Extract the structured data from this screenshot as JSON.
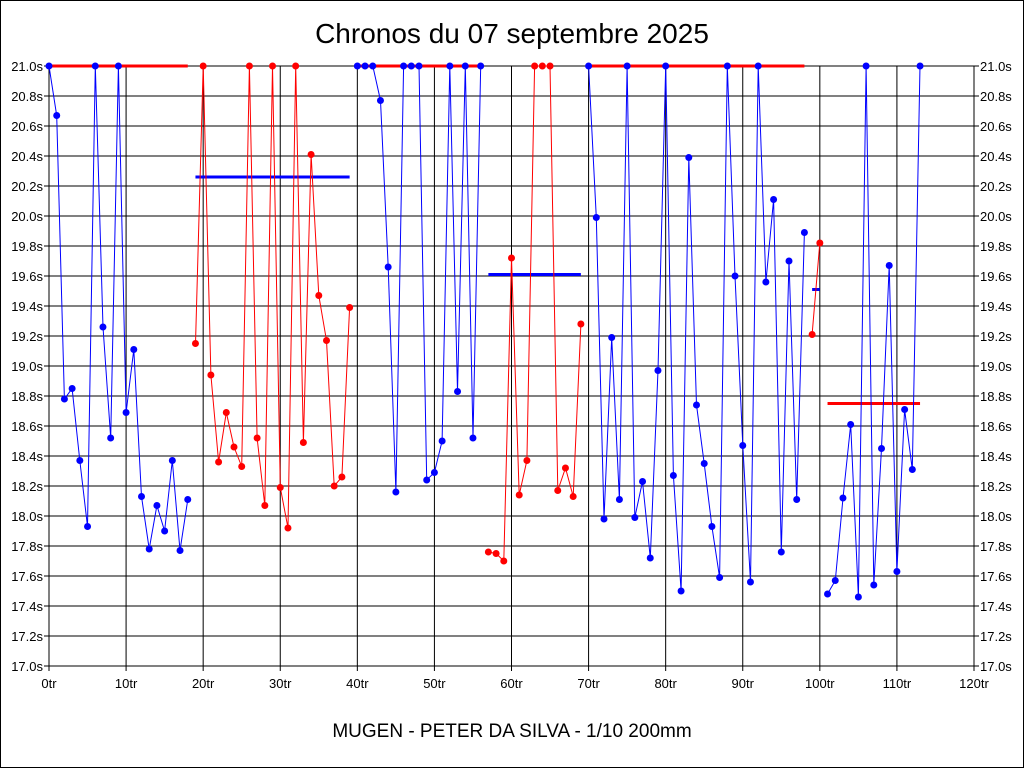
{
  "chart_data": {
    "type": "line",
    "title": "Chronos du 07 septembre 2025",
    "subtitle": "MUGEN - PETER DA SILVA - 1/10 200mm",
    "xlabel": "",
    "ylabel": "",
    "xlim": [
      0,
      120
    ],
    "ylim": [
      17.0,
      21.0
    ],
    "grid": true,
    "x_ticks": [
      "0tr",
      "10tr",
      "20tr",
      "30tr",
      "40tr",
      "50tr",
      "60tr",
      "70tr",
      "80tr",
      "90tr",
      "100tr",
      "110tr",
      "120tr"
    ],
    "y_ticks": [
      "17.0s",
      "17.2s",
      "17.4s",
      "17.6s",
      "17.8s",
      "18.0s",
      "18.2s",
      "18.4s",
      "18.6s",
      "18.8s",
      "19.0s",
      "19.2s",
      "19.4s",
      "19.6s",
      "19.8s",
      "20.0s",
      "20.2s",
      "20.4s",
      "20.6s",
      "20.8s",
      "21.0s"
    ],
    "colors": {
      "blue": "#0000ff",
      "red": "#ff0000"
    },
    "series": [
      {
        "color": "#0000ff",
        "points": [
          [
            0,
            21.0
          ],
          [
            1,
            20.67
          ],
          [
            2,
            18.78
          ],
          [
            3,
            18.85
          ],
          [
            4,
            18.37
          ],
          [
            5,
            17.93
          ],
          [
            6,
            21.0
          ],
          [
            7,
            19.26
          ],
          [
            8,
            18.52
          ],
          [
            9,
            21.0
          ],
          [
            10,
            18.69
          ],
          [
            11,
            19.11
          ],
          [
            12,
            18.13
          ],
          [
            13,
            17.78
          ],
          [
            14,
            18.07
          ],
          [
            15,
            17.9
          ],
          [
            16,
            18.37
          ],
          [
            17,
            17.77
          ],
          [
            18,
            18.11
          ]
        ],
        "mean": 21.0,
        "mean_color": "#ff0000",
        "mean_range": [
          0,
          18
        ]
      },
      {
        "color": "#ff0000",
        "points": [
          [
            19,
            19.15
          ],
          [
            20,
            21.0
          ],
          [
            21,
            18.94
          ],
          [
            22,
            18.36
          ],
          [
            23,
            18.69
          ],
          [
            24,
            18.46
          ],
          [
            25,
            18.33
          ],
          [
            26,
            21.0
          ],
          [
            27,
            18.52
          ],
          [
            28,
            18.07
          ],
          [
            29,
            21.0
          ],
          [
            30,
            18.19
          ],
          [
            31,
            17.92
          ],
          [
            32,
            21.0
          ],
          [
            33,
            18.49
          ],
          [
            34,
            20.41
          ],
          [
            35,
            19.47
          ],
          [
            36,
            19.17
          ],
          [
            37,
            18.2
          ],
          [
            38,
            18.26
          ],
          [
            39,
            19.39
          ]
        ],
        "mean": 20.26,
        "mean_color": "#0000ff",
        "mean_range": [
          19,
          39
        ]
      },
      {
        "color": "#0000ff",
        "points": [
          [
            40,
            21.0
          ],
          [
            41,
            21.0
          ],
          [
            42,
            21.0
          ],
          [
            43,
            20.77
          ],
          [
            44,
            19.66
          ],
          [
            45,
            18.16
          ],
          [
            46,
            21.0
          ],
          [
            47,
            21.0
          ],
          [
            48,
            21.0
          ],
          [
            49,
            18.24
          ],
          [
            50,
            18.29
          ],
          [
            51,
            18.5
          ],
          [
            52,
            21.0
          ],
          [
            53,
            18.83
          ],
          [
            54,
            21.0
          ],
          [
            55,
            18.52
          ],
          [
            56,
            21.0
          ]
        ],
        "mean": 21.0,
        "mean_color": "#ff0000",
        "mean_range": [
          40,
          56
        ]
      },
      {
        "color": "#ff0000",
        "points": [
          [
            57,
            17.76
          ],
          [
            58,
            17.75
          ],
          [
            59,
            17.7
          ],
          [
            60,
            19.72
          ],
          [
            61,
            18.14
          ],
          [
            62,
            18.37
          ],
          [
            63,
            21.0
          ],
          [
            64,
            21.0
          ],
          [
            65,
            21.0
          ],
          [
            66,
            18.17
          ],
          [
            67,
            18.32
          ],
          [
            68,
            18.13
          ],
          [
            69,
            19.28
          ]
        ],
        "mean": 19.61,
        "mean_color": "#0000ff",
        "mean_range": [
          57,
          69
        ]
      },
      {
        "color": "#0000ff",
        "points": [
          [
            70,
            21.0
          ],
          [
            71,
            19.99
          ],
          [
            72,
            17.98
          ],
          [
            73,
            19.19
          ],
          [
            74,
            18.11
          ],
          [
            75,
            21.0
          ],
          [
            76,
            17.99
          ],
          [
            77,
            18.23
          ],
          [
            78,
            17.72
          ],
          [
            79,
            18.97
          ],
          [
            80,
            21.0
          ],
          [
            81,
            18.27
          ],
          [
            82,
            17.5
          ],
          [
            83,
            20.39
          ],
          [
            84,
            18.74
          ],
          [
            85,
            18.35
          ],
          [
            86,
            17.93
          ],
          [
            87,
            17.59
          ],
          [
            88,
            21.0
          ],
          [
            89,
            19.6
          ],
          [
            90,
            18.47
          ],
          [
            91,
            17.56
          ],
          [
            92,
            21.0
          ],
          [
            93,
            19.56
          ],
          [
            94,
            20.11
          ],
          [
            95,
            17.76
          ],
          [
            96,
            19.7
          ],
          [
            97,
            18.11
          ],
          [
            98,
            19.89
          ]
        ],
        "mean": 21.0,
        "mean_color": "#ff0000",
        "mean_range": [
          70,
          98
        ]
      },
      {
        "color": "#ff0000",
        "points": [
          [
            99,
            19.21
          ],
          [
            100,
            19.82
          ]
        ],
        "mean": 19.51,
        "mean_color": "#0000ff",
        "mean_range": [
          99,
          100
        ]
      },
      {
        "color": "#0000ff",
        "points": [
          [
            101,
            17.48
          ],
          [
            102,
            17.57
          ],
          [
            103,
            18.12
          ],
          [
            104,
            18.61
          ],
          [
            105,
            17.46
          ],
          [
            106,
            21.0
          ],
          [
            107,
            17.54
          ],
          [
            108,
            18.45
          ],
          [
            109,
            19.67
          ],
          [
            110,
            17.63
          ],
          [
            111,
            18.71
          ],
          [
            112,
            18.31
          ],
          [
            113,
            21.0
          ]
        ],
        "mean": 18.75,
        "mean_color": "#ff0000",
        "mean_range": [
          101,
          113
        ]
      }
    ]
  }
}
